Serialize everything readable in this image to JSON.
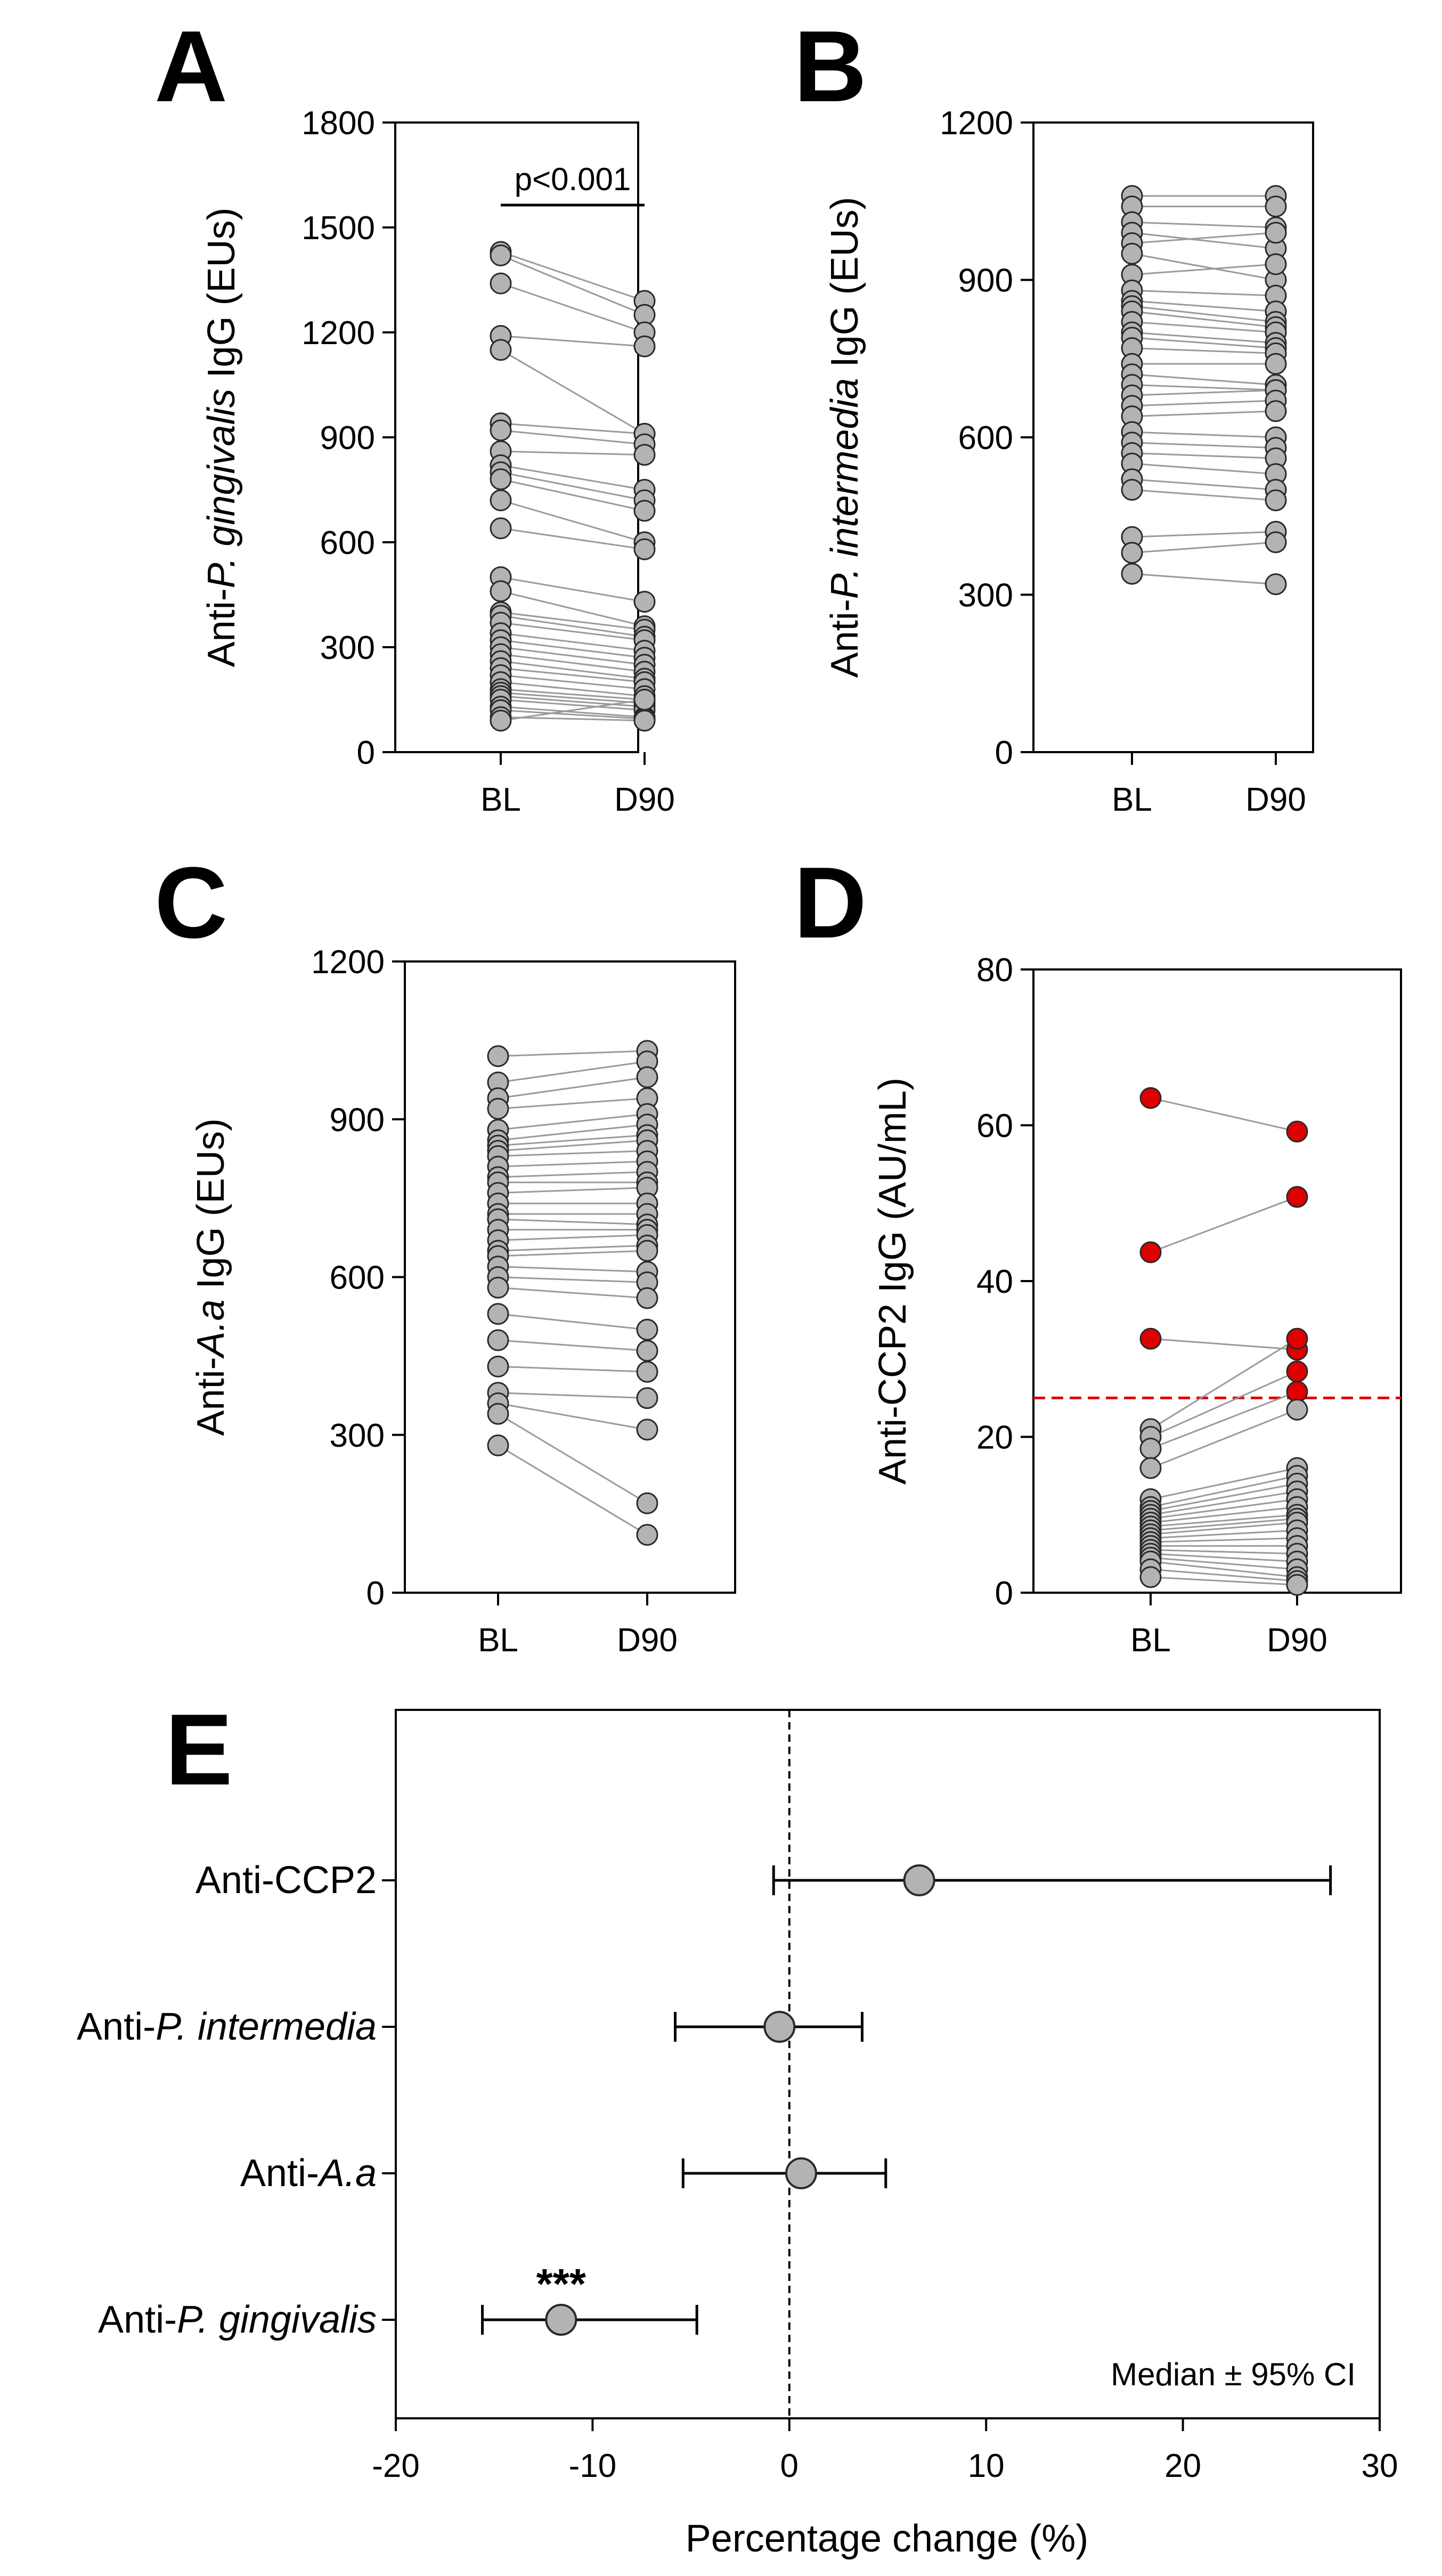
{
  "figure": {
    "panel_letters": [
      "A",
      "B",
      "C",
      "D",
      "E"
    ]
  },
  "colors": {
    "point_fill": "#b3b3b3",
    "point_stroke": "#2a2a2a",
    "line": "#9a9a9a",
    "positive": "#e00000",
    "threshold": "#e00000",
    "axis": "#000000"
  },
  "chart_data": [
    {
      "panel": "A",
      "type": "scatter",
      "subtype": "paired-dot-plot",
      "categories": [
        "BL",
        "D90"
      ],
      "ylabel_prefix": "Anti-",
      "ylabel_italic": "P. gingivalis",
      "ylabel_suffix": " IgG (EUs)",
      "ylim": [
        0,
        1800
      ],
      "yticks": [
        "0",
        "300",
        "600",
        "900",
        "1200",
        "1500",
        "1800"
      ],
      "annotation": "p<0.001",
      "pairs": [
        [
          1430,
          1290
        ],
        [
          1420,
          1250
        ],
        [
          1340,
          1200
        ],
        [
          1190,
          1160
        ],
        [
          1150,
          910
        ],
        [
          940,
          910
        ],
        [
          920,
          880
        ],
        [
          860,
          850
        ],
        [
          820,
          750
        ],
        [
          800,
          720
        ],
        [
          780,
          690
        ],
        [
          720,
          600
        ],
        [
          640,
          580
        ],
        [
          500,
          430
        ],
        [
          460,
          360
        ],
        [
          400,
          350
        ],
        [
          390,
          330
        ],
        [
          370,
          320
        ],
        [
          340,
          290
        ],
        [
          320,
          270
        ],
        [
          300,
          250
        ],
        [
          280,
          230
        ],
        [
          260,
          210
        ],
        [
          240,
          200
        ],
        [
          220,
          180
        ],
        [
          200,
          160
        ],
        [
          180,
          150
        ],
        [
          170,
          140
        ],
        [
          160,
          130
        ],
        [
          150,
          120
        ],
        [
          130,
          100
        ],
        [
          120,
          95
        ],
        [
          100,
          90
        ],
        [
          90,
          150
        ]
      ]
    },
    {
      "panel": "B",
      "type": "scatter",
      "subtype": "paired-dot-plot",
      "categories": [
        "BL",
        "D90"
      ],
      "ylabel_prefix": "Anti-",
      "ylabel_italic": "P. intermedia",
      "ylabel_suffix": " IgG (EUs)",
      "ylim": [
        0,
        1200
      ],
      "yticks": [
        "0",
        "300",
        "600",
        "900",
        "1200"
      ],
      "pairs": [
        [
          1060,
          1060
        ],
        [
          1040,
          1040
        ],
        [
          1010,
          1000
        ],
        [
          990,
          960
        ],
        [
          970,
          990
        ],
        [
          950,
          900
        ],
        [
          910,
          930
        ],
        [
          880,
          870
        ],
        [
          860,
          840
        ],
        [
          850,
          820
        ],
        [
          840,
          810
        ],
        [
          820,
          800
        ],
        [
          800,
          780
        ],
        [
          790,
          770
        ],
        [
          770,
          760
        ],
        [
          740,
          740
        ],
        [
          720,
          700
        ],
        [
          700,
          690
        ],
        [
          680,
          690
        ],
        [
          660,
          670
        ],
        [
          640,
          650
        ],
        [
          610,
          600
        ],
        [
          590,
          580
        ],
        [
          570,
          560
        ],
        [
          550,
          530
        ],
        [
          520,
          500
        ],
        [
          500,
          480
        ],
        [
          410,
          420
        ],
        [
          380,
          400
        ],
        [
          340,
          320
        ]
      ]
    },
    {
      "panel": "C",
      "type": "scatter",
      "subtype": "paired-dot-plot",
      "categories": [
        "BL",
        "D90"
      ],
      "ylabel_prefix": "Anti-",
      "ylabel_italic": "A.a",
      "ylabel_suffix": " IgG (EUs)",
      "ylim": [
        0,
        1200
      ],
      "yticks": [
        "0",
        "300",
        "600",
        "900",
        "1200"
      ],
      "pairs": [
        [
          1020,
          1030
        ],
        [
          970,
          1010
        ],
        [
          940,
          980
        ],
        [
          920,
          940
        ],
        [
          880,
          910
        ],
        [
          860,
          890
        ],
        [
          850,
          870
        ],
        [
          840,
          860
        ],
        [
          830,
          840
        ],
        [
          810,
          820
        ],
        [
          790,
          800
        ],
        [
          780,
          780
        ],
        [
          760,
          770
        ],
        [
          740,
          740
        ],
        [
          720,
          720
        ],
        [
          710,
          700
        ],
        [
          690,
          690
        ],
        [
          670,
          680
        ],
        [
          650,
          660
        ],
        [
          640,
          650
        ],
        [
          620,
          610
        ],
        [
          600,
          590
        ],
        [
          580,
          560
        ],
        [
          530,
          500
        ],
        [
          480,
          460
        ],
        [
          430,
          420
        ],
        [
          380,
          370
        ],
        [
          360,
          310
        ],
        [
          340,
          170
        ],
        [
          280,
          110
        ]
      ]
    },
    {
      "panel": "D",
      "type": "scatter",
      "subtype": "paired-dot-plot",
      "categories": [
        "BL",
        "D90"
      ],
      "ylabel": "Anti-CCP2 IgG (AU/mL)",
      "ylim": [
        0,
        80
      ],
      "yticks": [
        "0",
        "20",
        "40",
        "60",
        "80"
      ],
      "threshold": 25,
      "pairs": [
        [
          63.5,
          59.2
        ],
        [
          43.7,
          50.8
        ],
        [
          32.6,
          31.2
        ],
        [
          21,
          32.6
        ],
        [
          20,
          28.4
        ],
        [
          18.5,
          25.8
        ],
        [
          16,
          23.5
        ],
        [
          12,
          16
        ],
        [
          11,
          15
        ],
        [
          10.5,
          14
        ],
        [
          10,
          13
        ],
        [
          9.5,
          12
        ],
        [
          9,
          11
        ],
        [
          8.5,
          10
        ],
        [
          8,
          9.5
        ],
        [
          7.5,
          9
        ],
        [
          7,
          8
        ],
        [
          6.5,
          7
        ],
        [
          6,
          6
        ],
        [
          5.5,
          5
        ],
        [
          5,
          4
        ],
        [
          4.5,
          3
        ],
        [
          4,
          2
        ],
        [
          3,
          1.5
        ],
        [
          2,
          1
        ]
      ]
    },
    {
      "panel": "E",
      "type": "scatter",
      "subtype": "forest-plot",
      "xlabel": "Percentage change (%)",
      "xlim": [
        -20,
        30
      ],
      "xticks": [
        "-20",
        "-10",
        "0",
        "10",
        "20",
        "30"
      ],
      "rows": [
        {
          "label_prefix": "Anti-",
          "label_italic": "",
          "label_suffix": "CCP2",
          "median": 6.6,
          "ci_low": -0.8,
          "ci_high": 27.5,
          "significance": ""
        },
        {
          "label_prefix": "Anti-",
          "label_italic": "P. intermedia",
          "label_suffix": "",
          "median": -0.5,
          "ci_low": -5.8,
          "ci_high": 3.7,
          "significance": ""
        },
        {
          "label_prefix": "Anti-",
          "label_italic": "A.a",
          "label_suffix": "",
          "median": 0.6,
          "ci_low": -5.4,
          "ci_high": 4.9,
          "significance": ""
        },
        {
          "label_prefix": "Anti-",
          "label_italic": "P. gingivalis",
          "label_suffix": "",
          "median": -11.6,
          "ci_low": -15.6,
          "ci_high": -4.7,
          "significance": "***"
        }
      ],
      "legend_text": "Median ± 95% CI"
    }
  ]
}
